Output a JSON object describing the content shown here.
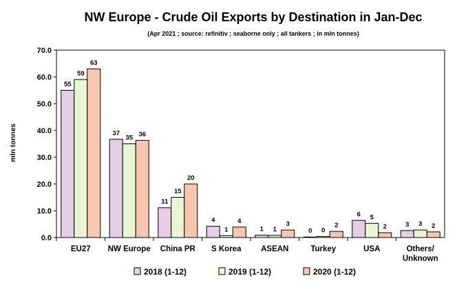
{
  "chart_data": {
    "type": "bar",
    "title": "NW Europe - Crude Oil Exports by Destination in Jan-Dec",
    "subtitle": "(Apr 2021 ; source: refinitiv ; seaborne only ; all tankers ; in mln tonnes)",
    "xlabel": "",
    "ylabel": "mln tonnes",
    "ylim": [
      0,
      70
    ],
    "yticks": [
      "0.0",
      "10.0",
      "20.0",
      "30.0",
      "40.0",
      "50.0",
      "60.0",
      "70.0"
    ],
    "categories": [
      "EU27",
      "NW Europe",
      "China PR",
      "S Korea",
      "ASEAN",
      "Turkey",
      "USA",
      "Others/\nUnknown"
    ],
    "series": [
      {
        "name": "2018 (1-12)",
        "color": "#e6cde6",
        "values": [
          55,
          36.7,
          11.1,
          4.2,
          0.9,
          0.2,
          6.4,
          2.6
        ],
        "labels": [
          "55",
          "37",
          "11",
          "4",
          "1",
          "0",
          "6",
          "3"
        ]
      },
      {
        "name": "2019 (1-12)",
        "color": "#e8f5d2",
        "values": [
          59,
          35,
          15,
          0.7,
          0.8,
          0.4,
          5.3,
          2.8
        ],
        "labels": [
          "59",
          "35",
          "15",
          "1",
          "1",
          "0",
          "5",
          "3"
        ]
      },
      {
        "name": "2020 (1-12)",
        "color": "#f7c6ad",
        "values": [
          63,
          36.3,
          20,
          3.9,
          2.8,
          2.3,
          1.8,
          2.1
        ],
        "labels": [
          "63",
          "36",
          "20",
          "4",
          "3",
          "2",
          "2",
          "2"
        ]
      }
    ],
    "grid": false,
    "legend": "bottom"
  }
}
